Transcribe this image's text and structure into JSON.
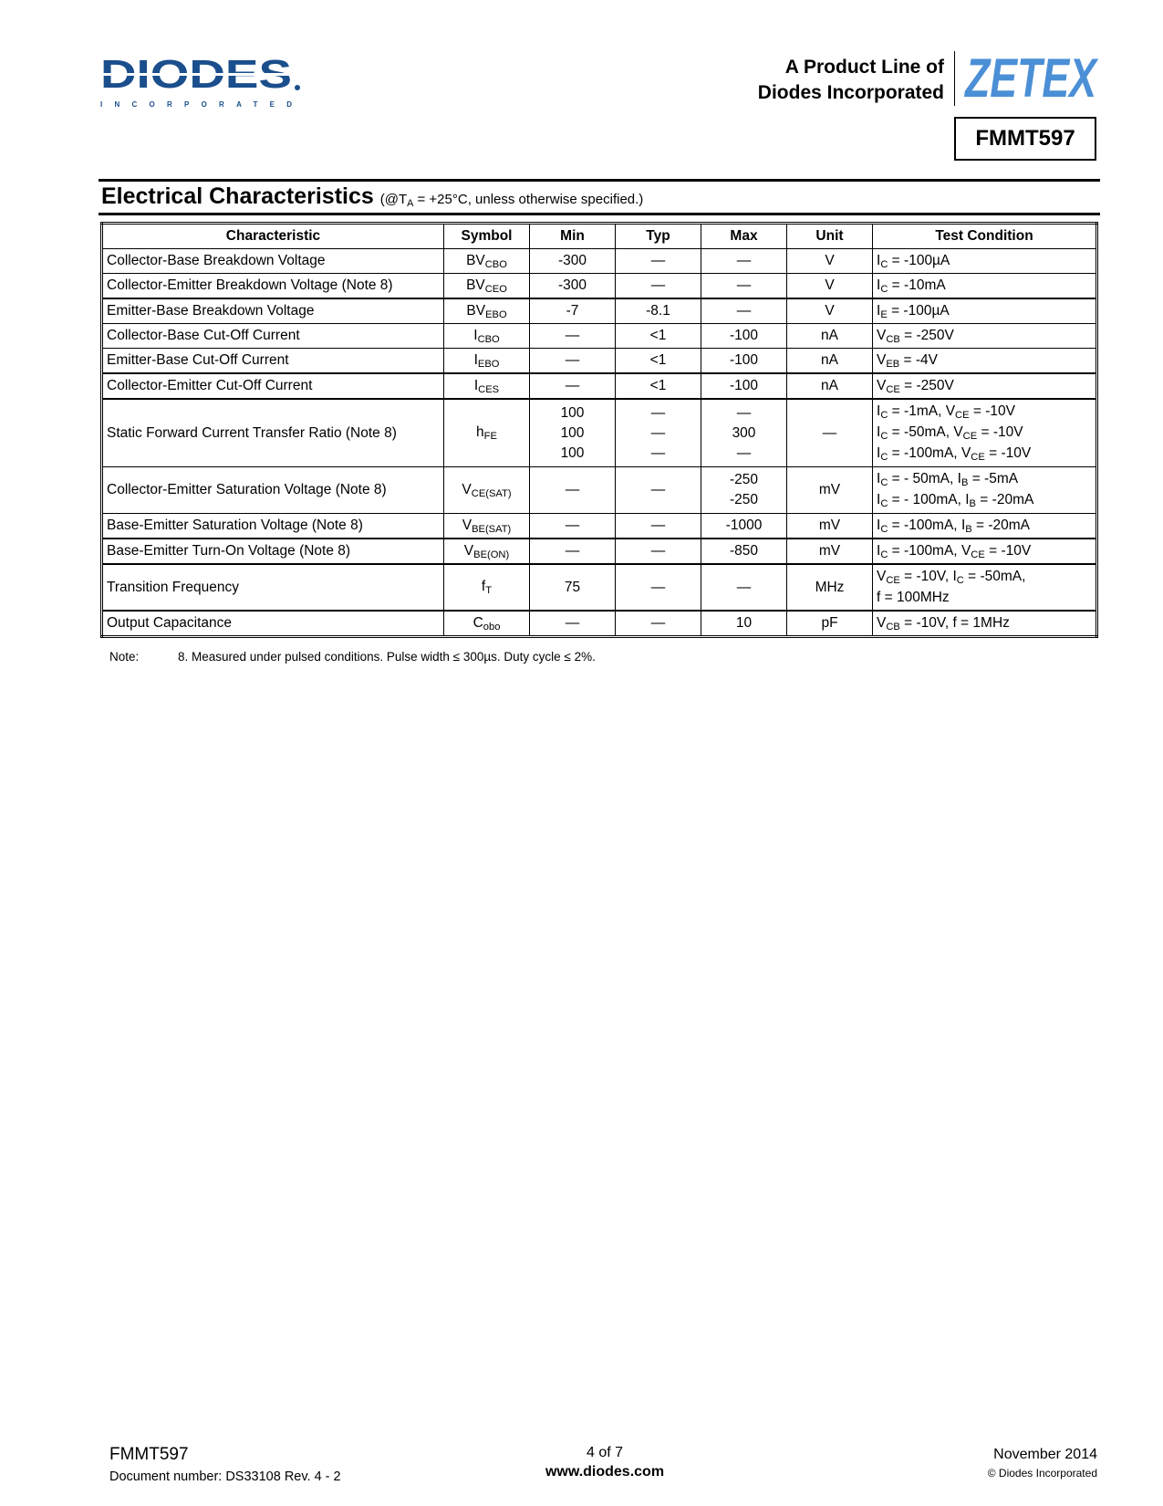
{
  "header": {
    "logo_left": {
      "name": "DIODES",
      "tagline": "I N C O R P O R A T E D",
      "color": "#1b4e8c"
    },
    "product_line": [
      "A Product Line of",
      "Diodes Incorporated"
    ],
    "logo_right": {
      "name": "ZETEX",
      "color": "#4b8fd6"
    },
    "part_number": "FMMT597"
  },
  "section": {
    "title": "Electrical Characteristics",
    "condition_pre": "(@T",
    "condition_sub": "A",
    "condition_post": " = +25°C, unless otherwise specified.)"
  },
  "table": {
    "headers": [
      "Characteristic",
      "Symbol",
      "Min",
      "Typ",
      "Max",
      "Unit",
      "Test Condition"
    ],
    "rows": [
      {
        "characteristic": "Collector-Base Breakdown Voltage",
        "symbol": [
          "BV",
          "CBO"
        ],
        "min": [
          "-300"
        ],
        "typ": [
          "—"
        ],
        "max": [
          "—"
        ],
        "unit": "V",
        "test": [
          [
            [
              "I",
              "C"
            ],
            " = -100µA"
          ]
        ]
      },
      {
        "characteristic": "Collector-Emitter Breakdown Voltage (Note 8)",
        "symbol": [
          "BV",
          "CEO"
        ],
        "min": [
          "-300"
        ],
        "typ": [
          "—"
        ],
        "max": [
          "—"
        ],
        "unit": "V",
        "test": [
          [
            [
              "I",
              "C"
            ],
            " = -10mA"
          ]
        ],
        "thick": true
      },
      {
        "characteristic": "Emitter-Base Breakdown Voltage",
        "symbol": [
          "BV",
          "EBO"
        ],
        "min": [
          "-7"
        ],
        "typ": [
          "-8.1"
        ],
        "max": [
          "—"
        ],
        "unit": "V",
        "test": [
          [
            [
              "I",
              "E"
            ],
            " = -100µA"
          ]
        ]
      },
      {
        "characteristic": "Collector-Base Cut-Off Current",
        "symbol": [
          "I",
          "CBO"
        ],
        "min": [
          "—"
        ],
        "typ": [
          "<1"
        ],
        "max": [
          "-100"
        ],
        "unit": "nA",
        "test": [
          [
            [
              "V",
              "CB"
            ],
            " = -250V"
          ]
        ]
      },
      {
        "characteristic": "Emitter-Base Cut-Off Current",
        "symbol": [
          "I",
          "EBO"
        ],
        "min": [
          "—"
        ],
        "typ": [
          "<1"
        ],
        "max": [
          "-100"
        ],
        "unit": "nA",
        "test": [
          [
            [
              "V",
              "EB"
            ],
            "  = -4V"
          ]
        ],
        "thick": true
      },
      {
        "characteristic": "Collector-Emitter Cut-Off Current",
        "symbol": [
          "I",
          "CES"
        ],
        "min": [
          "—"
        ],
        "typ": [
          "<1"
        ],
        "max": [
          "-100"
        ],
        "unit": "nA",
        "test": [
          [
            [
              "V",
              "CE"
            ],
            " = -250V"
          ]
        ],
        "thick": true
      },
      {
        "characteristic": "Static Forward Current Transfer Ratio (Note 8)",
        "symbol": [
          "h",
          "FE"
        ],
        "min": [
          "100",
          "100",
          "100"
        ],
        "typ": [
          "—",
          "—",
          "—"
        ],
        "max": [
          "—",
          "300",
          "—"
        ],
        "unit": "—",
        "test": [
          [
            [
              "I",
              "C"
            ],
            " = -1mA, ",
            [
              "V",
              "CE"
            ],
            " = -10V"
          ],
          [
            [
              "I",
              "C"
            ],
            " = -50mA, ",
            [
              "V",
              "CE"
            ],
            " = -10V"
          ],
          [
            [
              "I",
              "C"
            ],
            " = -100mA, ",
            [
              "V",
              "CE"
            ],
            " = -10V"
          ]
        ]
      },
      {
        "characteristic": "Collector-Emitter Saturation Voltage (Note 8)",
        "symbol": [
          "V",
          "CE(SAT)"
        ],
        "min": [
          "—"
        ],
        "typ": [
          "—"
        ],
        "max": [
          "-250",
          "-250"
        ],
        "unit": "mV",
        "test": [
          [
            [
              "I",
              "C"
            ],
            " = - 50mA, ",
            [
              "I",
              "B"
            ],
            " = -5mA"
          ],
          [
            [
              "I",
              "C"
            ],
            " = - 100mA, ",
            [
              "I",
              "B"
            ],
            " = -20mA"
          ]
        ]
      },
      {
        "characteristic": "Base-Emitter Saturation Voltage (Note 8)",
        "symbol": [
          "V",
          "BE(SAT)"
        ],
        "min": [
          "—"
        ],
        "typ": [
          "—"
        ],
        "max": [
          "-1000"
        ],
        "unit": "mV",
        "test": [
          [
            [
              "I",
              "C"
            ],
            " = -100mA, ",
            [
              "I",
              "B"
            ],
            " = -20mA"
          ]
        ],
        "thick": true
      },
      {
        "characteristic": "Base-Emitter Turn-On Voltage (Note 8)",
        "symbol": [
          "V",
          "BE(ON)"
        ],
        "min": [
          "—"
        ],
        "typ": [
          "—"
        ],
        "max": [
          "-850"
        ],
        "unit": "mV",
        "test": [
          [
            [
              "I",
              "C"
            ],
            " = -100mA, ",
            [
              "V",
              "CE"
            ],
            " = -10V"
          ]
        ],
        "thick": true
      },
      {
        "characteristic": "Transition Frequency",
        "symbol": [
          "f",
          "T"
        ],
        "min": [
          "75"
        ],
        "typ": [
          "—"
        ],
        "max": [
          "—"
        ],
        "unit": "MHz",
        "test": [
          [
            [
              "V",
              "CE"
            ],
            " = -10V, ",
            [
              "I",
              "C"
            ],
            " = -50mA,"
          ],
          [
            "f = 100MHz"
          ]
        ],
        "thick": true
      },
      {
        "characteristic": "Output Capacitance",
        "symbol": [
          "C",
          "obo"
        ],
        "min": [
          "—"
        ],
        "typ": [
          "—"
        ],
        "max": [
          "10"
        ],
        "unit": "pF",
        "test": [
          [
            [
              "V",
              "CB"
            ],
            " = -10V, f = 1MHz"
          ]
        ]
      }
    ]
  },
  "note": {
    "label": "Note:",
    "text": "8. Measured under pulsed conditions. Pulse width ≤ 300µs. Duty cycle ≤ 2%."
  },
  "footer": {
    "part": "FMMT597",
    "document": "Document number: DS33108 Rev. 4 - 2",
    "page": "4 of 7",
    "website": "www.diodes.com",
    "date": "November 2014",
    "copyright": "© Diodes Incorporated"
  }
}
